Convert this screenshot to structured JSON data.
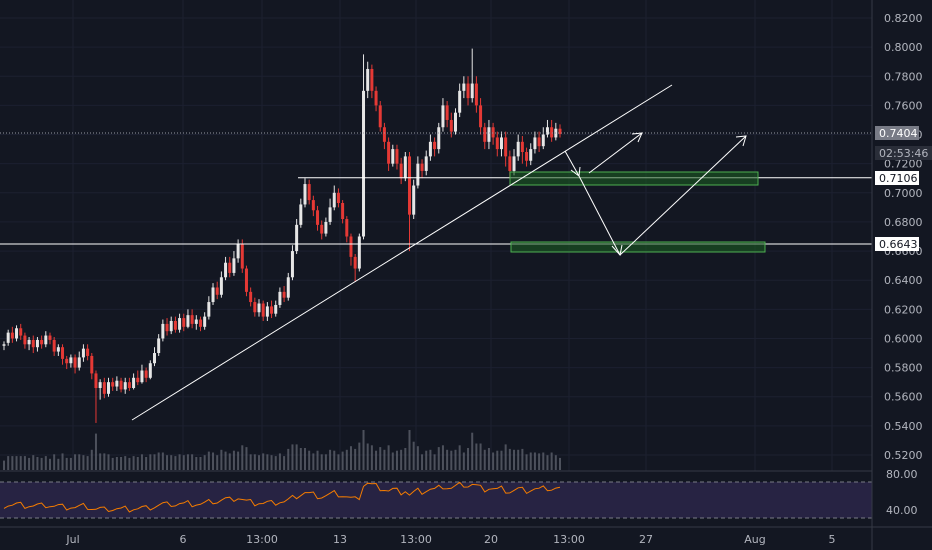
{
  "chart_data": {
    "type": "candlestick",
    "y_axis": {
      "ticks": [
        "0.8200",
        "0.8000",
        "0.7800",
        "0.7600",
        "0.7400",
        "0.7200",
        "0.7000",
        "0.6800",
        "0.6600",
        "0.6400",
        "0.6200",
        "0.6000",
        "0.5800",
        "0.5600",
        "0.5400",
        "0.5200"
      ],
      "ylim": [
        0.512,
        0.826
      ],
      "position": "right"
    },
    "x_axis": {
      "ticks": [
        "Jul",
        "6",
        "13:00",
        "13",
        "13:00",
        "20",
        "13:00",
        "27",
        "Aug",
        "5"
      ]
    },
    "price_badges": {
      "last_price": "0.7404",
      "countdown": "02:53:46",
      "level_1": "0.7106",
      "level_2": "0.6643"
    },
    "horizontal_levels": [
      0.7106,
      0.6643,
      0.7404
    ],
    "trendline": {
      "from": [
        0,
        0.545
      ],
      "to": [
        1,
        0.777
      ]
    },
    "support_zones": [
      {
        "low": 0.7055,
        "high": 0.7135
      },
      {
        "low": 0.6615,
        "high": 0.668
      }
    ],
    "projection": "pullback to 0.7106 then bounce, or deeper drop to 0.6643 then bounce",
    "rsi": {
      "ticks": [
        "80.00",
        "40.00"
      ],
      "ylim": [
        30,
        85
      ],
      "bands": [
        70,
        30
      ]
    },
    "candles": [
      [
        0.595,
        0.596,
        0.592,
        0.598
      ],
      [
        0.597,
        0.604,
        0.595,
        0.606
      ],
      [
        0.604,
        0.6,
        0.597,
        0.608
      ],
      [
        0.6,
        0.607,
        0.598,
        0.609
      ],
      [
        0.607,
        0.602,
        0.599,
        0.61
      ],
      [
        0.602,
        0.596,
        0.593,
        0.604
      ],
      [
        0.596,
        0.599,
        0.592,
        0.601
      ],
      [
        0.599,
        0.594,
        0.59,
        0.602
      ],
      [
        0.594,
        0.599,
        0.591,
        0.601
      ],
      [
        0.599,
        0.596,
        0.593,
        0.602
      ],
      [
        0.596,
        0.602,
        0.594,
        0.605
      ],
      [
        0.602,
        0.599,
        0.596,
        0.604
      ],
      [
        0.599,
        0.591,
        0.588,
        0.601
      ],
      [
        0.591,
        0.594,
        0.588,
        0.596
      ],
      [
        0.594,
        0.586,
        0.582,
        0.596
      ],
      [
        0.586,
        0.583,
        0.579,
        0.588
      ],
      [
        0.583,
        0.587,
        0.58,
        0.589
      ],
      [
        0.587,
        0.58,
        0.576,
        0.589
      ],
      [
        0.58,
        0.587,
        0.578,
        0.591
      ],
      [
        0.587,
        0.593,
        0.584,
        0.596
      ],
      [
        0.593,
        0.588,
        0.585,
        0.596
      ],
      [
        0.588,
        0.576,
        0.572,
        0.59
      ],
      [
        0.576,
        0.566,
        0.542,
        0.578
      ],
      [
        0.566,
        0.57,
        0.558,
        0.572
      ],
      [
        0.57,
        0.562,
        0.559,
        0.573
      ],
      [
        0.562,
        0.57,
        0.56,
        0.573
      ],
      [
        0.57,
        0.567,
        0.564,
        0.573
      ],
      [
        0.567,
        0.571,
        0.564,
        0.574
      ],
      [
        0.571,
        0.565,
        0.563,
        0.573
      ],
      [
        0.565,
        0.57,
        0.562,
        0.573
      ],
      [
        0.57,
        0.566,
        0.564,
        0.573
      ],
      [
        0.566,
        0.573,
        0.565,
        0.576
      ],
      [
        0.573,
        0.57,
        0.568,
        0.578
      ],
      [
        0.57,
        0.578,
        0.569,
        0.582
      ],
      [
        0.578,
        0.573,
        0.57,
        0.58
      ],
      [
        0.573,
        0.583,
        0.572,
        0.585
      ],
      [
        0.583,
        0.59,
        0.581,
        0.594
      ],
      [
        0.59,
        0.6,
        0.588,
        0.603
      ],
      [
        0.6,
        0.61,
        0.598,
        0.613
      ],
      [
        0.61,
        0.605,
        0.602,
        0.614
      ],
      [
        0.605,
        0.612,
        0.603,
        0.615
      ],
      [
        0.612,
        0.606,
        0.604,
        0.615
      ],
      [
        0.606,
        0.614,
        0.604,
        0.617
      ],
      [
        0.614,
        0.608,
        0.605,
        0.617
      ],
      [
        0.608,
        0.616,
        0.607,
        0.62
      ],
      [
        0.616,
        0.61,
        0.607,
        0.62
      ],
      [
        0.61,
        0.613,
        0.606,
        0.616
      ],
      [
        0.613,
        0.608,
        0.605,
        0.615
      ],
      [
        0.608,
        0.615,
        0.606,
        0.618
      ],
      [
        0.615,
        0.625,
        0.613,
        0.629
      ],
      [
        0.625,
        0.635,
        0.623,
        0.638
      ],
      [
        0.635,
        0.63,
        0.627,
        0.639
      ],
      [
        0.63,
        0.642,
        0.628,
        0.646
      ],
      [
        0.642,
        0.652,
        0.64,
        0.656
      ],
      [
        0.652,
        0.645,
        0.642,
        0.656
      ],
      [
        0.645,
        0.655,
        0.643,
        0.66
      ],
      [
        0.655,
        0.665,
        0.652,
        0.668
      ],
      [
        0.665,
        0.648,
        0.645,
        0.668
      ],
      [
        0.648,
        0.632,
        0.629,
        0.65
      ],
      [
        0.632,
        0.625,
        0.622,
        0.635
      ],
      [
        0.625,
        0.618,
        0.615,
        0.628
      ],
      [
        0.618,
        0.624,
        0.615,
        0.627
      ],
      [
        0.624,
        0.615,
        0.612,
        0.626
      ],
      [
        0.615,
        0.622,
        0.612,
        0.625
      ],
      [
        0.622,
        0.617,
        0.614,
        0.626
      ],
      [
        0.617,
        0.623,
        0.615,
        0.626
      ],
      [
        0.623,
        0.632,
        0.621,
        0.635
      ],
      [
        0.632,
        0.628,
        0.625,
        0.636
      ],
      [
        0.628,
        0.642,
        0.626,
        0.645
      ],
      [
        0.642,
        0.66,
        0.64,
        0.664
      ],
      [
        0.66,
        0.678,
        0.658,
        0.682
      ],
      [
        0.678,
        0.692,
        0.676,
        0.696
      ],
      [
        0.692,
        0.706,
        0.69,
        0.71
      ],
      [
        0.706,
        0.695,
        0.692,
        0.709
      ],
      [
        0.695,
        0.688,
        0.684,
        0.698
      ],
      [
        0.688,
        0.678,
        0.674,
        0.691
      ],
      [
        0.678,
        0.672,
        0.668,
        0.681
      ],
      [
        0.672,
        0.68,
        0.67,
        0.683
      ],
      [
        0.68,
        0.69,
        0.678,
        0.696
      ],
      [
        0.69,
        0.7,
        0.688,
        0.705
      ],
      [
        0.7,
        0.693,
        0.69,
        0.703
      ],
      [
        0.693,
        0.682,
        0.679,
        0.695
      ],
      [
        0.682,
        0.67,
        0.666,
        0.684
      ],
      [
        0.67,
        0.656,
        0.65,
        0.672
      ],
      [
        0.656,
        0.648,
        0.639,
        0.658
      ],
      [
        0.648,
        0.67,
        0.646,
        0.672
      ],
      [
        0.67,
        0.77,
        0.668,
        0.795
      ],
      [
        0.77,
        0.785,
        0.765,
        0.79
      ],
      [
        0.785,
        0.77,
        0.765,
        0.788
      ],
      [
        0.77,
        0.76,
        0.756,
        0.773
      ],
      [
        0.76,
        0.745,
        0.742,
        0.763
      ],
      [
        0.745,
        0.735,
        0.73,
        0.748
      ],
      [
        0.735,
        0.72,
        0.715,
        0.738
      ],
      [
        0.72,
        0.73,
        0.718,
        0.733
      ],
      [
        0.73,
        0.72,
        0.716,
        0.733
      ],
      [
        0.72,
        0.71,
        0.706,
        0.724
      ],
      [
        0.71,
        0.725,
        0.708,
        0.728
      ],
      [
        0.725,
        0.685,
        0.66,
        0.728
      ],
      [
        0.685,
        0.705,
        0.682,
        0.709
      ],
      [
        0.705,
        0.72,
        0.703,
        0.725
      ],
      [
        0.72,
        0.715,
        0.71,
        0.723
      ],
      [
        0.715,
        0.725,
        0.712,
        0.729
      ],
      [
        0.725,
        0.735,
        0.722,
        0.74
      ],
      [
        0.735,
        0.73,
        0.725,
        0.738
      ],
      [
        0.73,
        0.745,
        0.727,
        0.748
      ],
      [
        0.745,
        0.76,
        0.742,
        0.765
      ],
      [
        0.76,
        0.75,
        0.745,
        0.763
      ],
      [
        0.75,
        0.742,
        0.738,
        0.755
      ],
      [
        0.742,
        0.755,
        0.74,
        0.758
      ],
      [
        0.755,
        0.77,
        0.752,
        0.775
      ],
      [
        0.77,
        0.775,
        0.765,
        0.78
      ],
      [
        0.775,
        0.765,
        0.76,
        0.78
      ],
      [
        0.765,
        0.775,
        0.762,
        0.799
      ],
      [
        0.775,
        0.76,
        0.755,
        0.78
      ],
      [
        0.76,
        0.745,
        0.74,
        0.765
      ],
      [
        0.745,
        0.735,
        0.73,
        0.748
      ],
      [
        0.735,
        0.745,
        0.73,
        0.75
      ],
      [
        0.745,
        0.738,
        0.733,
        0.748
      ],
      [
        0.738,
        0.73,
        0.725,
        0.742
      ],
      [
        0.73,
        0.738,
        0.725,
        0.742
      ],
      [
        0.738,
        0.725,
        0.718,
        0.742
      ],
      [
        0.725,
        0.715,
        0.71,
        0.729
      ],
      [
        0.715,
        0.725,
        0.712,
        0.73
      ],
      [
        0.725,
        0.735,
        0.722,
        0.74
      ],
      [
        0.735,
        0.728,
        0.72,
        0.739
      ],
      [
        0.728,
        0.722,
        0.718,
        0.731
      ],
      [
        0.722,
        0.73,
        0.719,
        0.734
      ],
      [
        0.73,
        0.738,
        0.727,
        0.742
      ],
      [
        0.738,
        0.732,
        0.728,
        0.742
      ],
      [
        0.732,
        0.74,
        0.73,
        0.745
      ],
      [
        0.74,
        0.745,
        0.738,
        0.75
      ],
      [
        0.745,
        0.738,
        0.735,
        0.75
      ],
      [
        0.738,
        0.744,
        0.736,
        0.748
      ],
      [
        0.744,
        0.7404,
        0.738,
        0.747
      ]
    ]
  }
}
